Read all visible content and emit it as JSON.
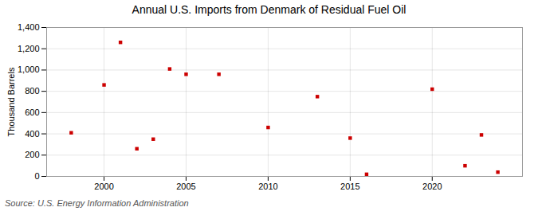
{
  "chart_data": {
    "type": "scatter",
    "title": "Annual U.S. Imports from Denmark of Residual Fuel Oil",
    "ylabel": "Thousand Barrels",
    "source": "Source: U.S. Energy Information Administration",
    "x": [
      1998,
      2000,
      2001,
      2002,
      2003,
      2004,
      2005,
      2007,
      2010,
      2013,
      2015,
      2016,
      2020,
      2022,
      2023,
      2024
    ],
    "values": [
      410,
      860,
      1260,
      260,
      350,
      1010,
      960,
      960,
      460,
      750,
      360,
      20,
      820,
      100,
      390,
      40
    ],
    "color": "#cc0000",
    "marker": "square",
    "xlim": [
      1996.5,
      2025.5
    ],
    "xticks": [
      2000,
      2005,
      2010,
      2015,
      2020
    ],
    "ylim": [
      0,
      1400
    ],
    "yticks": [
      0,
      200,
      400,
      600,
      800,
      {
        "value": 1000,
        "label": "1,000"
      },
      {
        "value": 1200,
        "label": "1,200"
      },
      {
        "value": 1400,
        "label": "1,400"
      }
    ],
    "grid": true
  }
}
